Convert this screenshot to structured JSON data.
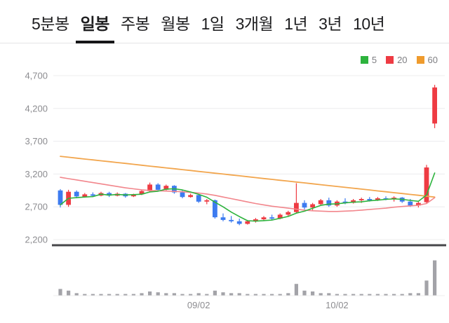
{
  "tabs": {
    "items": [
      {
        "label": "5분봉",
        "active": false
      },
      {
        "label": "일봉",
        "active": true
      },
      {
        "label": "주봉",
        "active": false
      },
      {
        "label": "월봉",
        "active": false
      },
      {
        "label": "1일",
        "active": false
      },
      {
        "label": "3개월",
        "active": false
      },
      {
        "label": "1년",
        "active": false
      },
      {
        "label": "3년",
        "active": false
      },
      {
        "label": "10년",
        "active": false
      }
    ]
  },
  "legend": {
    "items": [
      {
        "label": "5",
        "color": "#2db33d"
      },
      {
        "label": "20",
        "color": "#ee3b43"
      },
      {
        "label": "60",
        "color": "#ef9b2d"
      }
    ]
  },
  "chart_data": {
    "type": "candlestick",
    "title": "일봉 (daily) candlestick chart with volume",
    "y_axis": {
      "ticks": [
        "4,700",
        "4,200",
        "3,700",
        "3,200",
        "2,700",
        "2,200"
      ],
      "max": 4700,
      "min": 2200
    },
    "x_axis": {
      "labels": [
        {
          "text": "09/02",
          "index": 17
        },
        {
          "text": "10/02",
          "index": 34
        }
      ]
    },
    "candles": [
      [
        2950,
        2970,
        2690,
        2730
      ],
      [
        2730,
        2960,
        2700,
        2930
      ],
      [
        2930,
        2950,
        2830,
        2860
      ],
      [
        2850,
        2910,
        2840,
        2890
      ],
      [
        2890,
        2920,
        2850,
        2870
      ],
      [
        2870,
        2930,
        2860,
        2910
      ],
      [
        2910,
        2930,
        2850,
        2870
      ],
      [
        2870,
        2920,
        2860,
        2900
      ],
      [
        2900,
        2910,
        2840,
        2860
      ],
      [
        2860,
        2900,
        2850,
        2890
      ],
      [
        2890,
        2960,
        2880,
        2940
      ],
      [
        2940,
        3070,
        2930,
        3040
      ],
      [
        3040,
        3060,
        2940,
        2960
      ],
      [
        2960,
        3040,
        2950,
        3020
      ],
      [
        3020,
        3030,
        2900,
        2920
      ],
      [
        2920,
        2950,
        2830,
        2850
      ],
      [
        2850,
        2900,
        2840,
        2880
      ],
      [
        2880,
        2890,
        2760,
        2780
      ],
      [
        2780,
        2820,
        2740,
        2800
      ],
      [
        2800,
        2810,
        2520,
        2540
      ],
      [
        2540,
        2600,
        2480,
        2500
      ],
      [
        2500,
        2560,
        2460,
        2480
      ],
      [
        2480,
        2520,
        2420,
        2440
      ],
      [
        2440,
        2500,
        2430,
        2480
      ],
      [
        2480,
        2530,
        2460,
        2510
      ],
      [
        2510,
        2560,
        2490,
        2540
      ],
      [
        2540,
        2580,
        2500,
        2520
      ],
      [
        2520,
        2600,
        2510,
        2580
      ],
      [
        2580,
        2640,
        2560,
        2620
      ],
      [
        2620,
        3060,
        2600,
        2760
      ],
      [
        2760,
        2800,
        2660,
        2690
      ],
      [
        2690,
        2760,
        2650,
        2740
      ],
      [
        2740,
        2820,
        2720,
        2800
      ],
      [
        2800,
        2840,
        2700,
        2720
      ],
      [
        2720,
        2800,
        2700,
        2780
      ],
      [
        2780,
        2830,
        2740,
        2760
      ],
      [
        2760,
        2820,
        2750,
        2800
      ],
      [
        2800,
        2840,
        2760,
        2820
      ],
      [
        2820,
        2850,
        2780,
        2800
      ],
      [
        2800,
        2850,
        2790,
        2830
      ],
      [
        2830,
        2860,
        2800,
        2820
      ],
      [
        2820,
        2860,
        2780,
        2840
      ],
      [
        2840,
        2850,
        2760,
        2780
      ],
      [
        2780,
        2820,
        2700,
        2720
      ],
      [
        2720,
        2780,
        2690,
        2760
      ],
      [
        2770,
        3340,
        2750,
        3300
      ],
      [
        3970,
        4560,
        3900,
        4520
      ]
    ],
    "volumes": [
      8,
      6,
      3,
      2,
      2,
      2,
      2,
      2,
      2,
      2,
      3,
      5,
      4,
      3,
      3,
      2,
      2,
      3,
      2,
      6,
      4,
      3,
      3,
      2,
      2,
      2,
      2,
      2,
      3,
      14,
      6,
      5,
      3,
      3,
      2,
      2,
      2,
      2,
      2,
      2,
      2,
      2,
      2,
      3,
      3,
      18,
      42
    ],
    "ma": {
      "ma5": [
        2730,
        2830,
        2840,
        2850,
        2856,
        2892,
        2880,
        2888,
        2882,
        2886,
        2892,
        2926,
        2938,
        2970,
        2976,
        2958,
        2926,
        2890,
        2846,
        2770,
        2700,
        2620,
        2552,
        2488,
        2482,
        2490,
        2498,
        2526,
        2554,
        2604,
        2634,
        2678,
        2722,
        2742,
        2746,
        2760,
        2772,
        2776,
        2792,
        2802,
        2814,
        2822,
        2814,
        2798,
        2784,
        2880,
        3216
      ],
      "ma20": [
        3150,
        3130,
        3110,
        3090,
        3070,
        3050,
        3030,
        3010,
        2990,
        2975,
        2960,
        2950,
        2945,
        2940,
        2935,
        2930,
        2920,
        2910,
        2895,
        2875,
        2850,
        2825,
        2800,
        2775,
        2750,
        2730,
        2710,
        2695,
        2680,
        2665,
        2650,
        2640,
        2635,
        2630,
        2630,
        2635,
        2640,
        2650,
        2660,
        2670,
        2680,
        2695,
        2705,
        2715,
        2725,
        2750,
        2840
      ],
      "ma60": [
        3470,
        3456,
        3443,
        3429,
        3416,
        3402,
        3389,
        3375,
        3362,
        3348,
        3335,
        3321,
        3308,
        3294,
        3281,
        3267,
        3254,
        3240,
        3227,
        3213,
        3200,
        3186,
        3173,
        3159,
        3146,
        3132,
        3119,
        3105,
        3092,
        3078,
        3065,
        3051,
        3038,
        3024,
        3011,
        2997,
        2984,
        2970,
        2957,
        2943,
        2930,
        2916,
        2903,
        2889,
        2876,
        2862,
        2849
      ]
    },
    "colors": {
      "up": "#ee3b43",
      "down": "#3d7bf0",
      "ma5": "#2db33d",
      "ma20": "#f2868c",
      "ma60": "#f2a64e",
      "grid": "#ececee",
      "axis_text": "#8c8c90",
      "separator": "#47474a",
      "volume_bar": "#a3a3a8"
    }
  }
}
